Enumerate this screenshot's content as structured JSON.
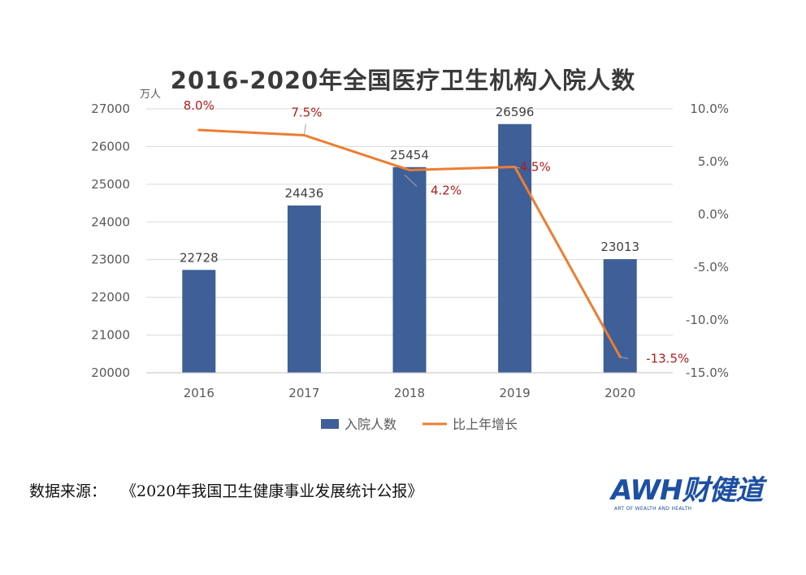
{
  "chart_data": {
    "type": "bar+line",
    "title": "2016-2020年全国医疗卫生机构入院人数",
    "unit_label": "万人",
    "categories": [
      "2016",
      "2017",
      "2018",
      "2019",
      "2020"
    ],
    "series": [
      {
        "name": "入院人数",
        "type": "bar",
        "axis": "left",
        "values": [
          22728,
          24436,
          25454,
          26596,
          23013
        ],
        "labels": [
          "22728",
          "24436",
          "25454",
          "26596",
          "23013"
        ],
        "color": "#3e5f97"
      },
      {
        "name": "比上年增长",
        "type": "line",
        "axis": "right",
        "values": [
          8.0,
          7.5,
          4.2,
          4.5,
          -13.5
        ],
        "labels": [
          "8.0%",
          "7.5%",
          "4.2%",
          "4.5%",
          "-13.5%"
        ],
        "color": "#ed7d31",
        "label_color": "#b01c1c"
      }
    ],
    "left_axis": {
      "min": 20000,
      "max": 27000,
      "ticks": [
        "20000",
        "21000",
        "22000",
        "23000",
        "24000",
        "25000",
        "26000",
        "27000"
      ]
    },
    "right_axis": {
      "min": -15,
      "max": 10,
      "ticks": [
        "-15.0%",
        "-10.0%",
        "-5.0%",
        "0.0%",
        "5.0%",
        "10.0%"
      ]
    },
    "legend": "bottom"
  },
  "source": {
    "label": "数据来源：",
    "text": "《2020年我国卫生健康事业发展统计公报》"
  },
  "logo": {
    "text": "AWH财健道",
    "subtitle": "ART OF WEALTH AND HEALTH"
  }
}
